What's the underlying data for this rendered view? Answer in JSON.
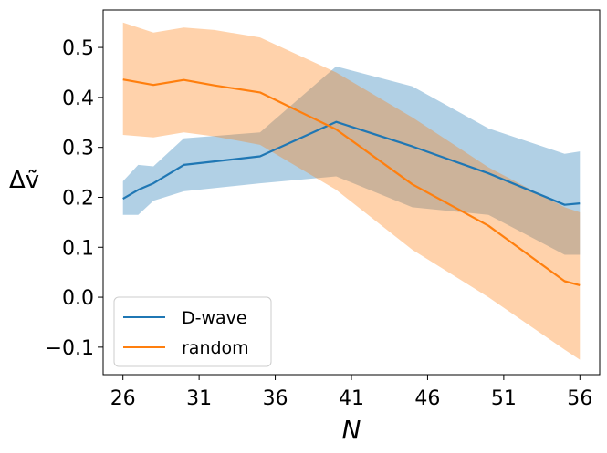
{
  "chart_data": {
    "type": "line",
    "title": "",
    "xlabel": "N",
    "ylabel": "Δṽ",
    "xlim": [
      24.7,
      57.3
    ],
    "ylim": [
      -0.155,
      0.575
    ],
    "xticks": [
      26,
      31,
      36,
      41,
      46,
      51,
      56
    ],
    "xtick_labels": [
      "26",
      "31",
      "36",
      "41",
      "46",
      "51",
      "56"
    ],
    "yticks": [
      -0.1,
      0.0,
      0.1,
      0.2,
      0.3,
      0.4,
      0.5
    ],
    "ytick_labels": [
      "−0.1",
      "0.0",
      "0.1",
      "0.2",
      "0.3",
      "0.4",
      "0.5"
    ],
    "grid": false,
    "legend_position": "lower-left",
    "series": [
      {
        "name": "D-wave",
        "color": "#1f77b4",
        "band_color": "#1f77b4",
        "x": [
          26,
          27,
          28,
          30,
          35,
          40,
          45,
          50,
          55,
          56
        ],
        "y": [
          0.197,
          0.215,
          0.228,
          0.265,
          0.282,
          0.351,
          0.302,
          0.248,
          0.185,
          0.188
        ],
        "lower": [
          0.165,
          0.165,
          0.193,
          0.212,
          0.228,
          0.242,
          0.18,
          0.165,
          0.085,
          0.085
        ],
        "upper": [
          0.232,
          0.265,
          0.262,
          0.318,
          0.33,
          0.462,
          0.422,
          0.338,
          0.287,
          0.292
        ]
      },
      {
        "name": "random",
        "color": "#ff7f0e",
        "band_color": "#ff7f0e",
        "x": [
          26,
          28,
          30,
          32,
          35,
          40,
          45,
          50,
          55,
          56
        ],
        "y": [
          0.436,
          0.425,
          0.435,
          0.424,
          0.41,
          0.336,
          0.226,
          0.143,
          0.032,
          0.024
        ],
        "lower": [
          0.325,
          0.32,
          0.33,
          0.322,
          0.305,
          0.215,
          0.095,
          0.0,
          -0.105,
          -0.125
        ],
        "upper": [
          0.55,
          0.53,
          0.54,
          0.535,
          0.52,
          0.45,
          0.36,
          0.26,
          0.18,
          0.17
        ]
      }
    ]
  }
}
